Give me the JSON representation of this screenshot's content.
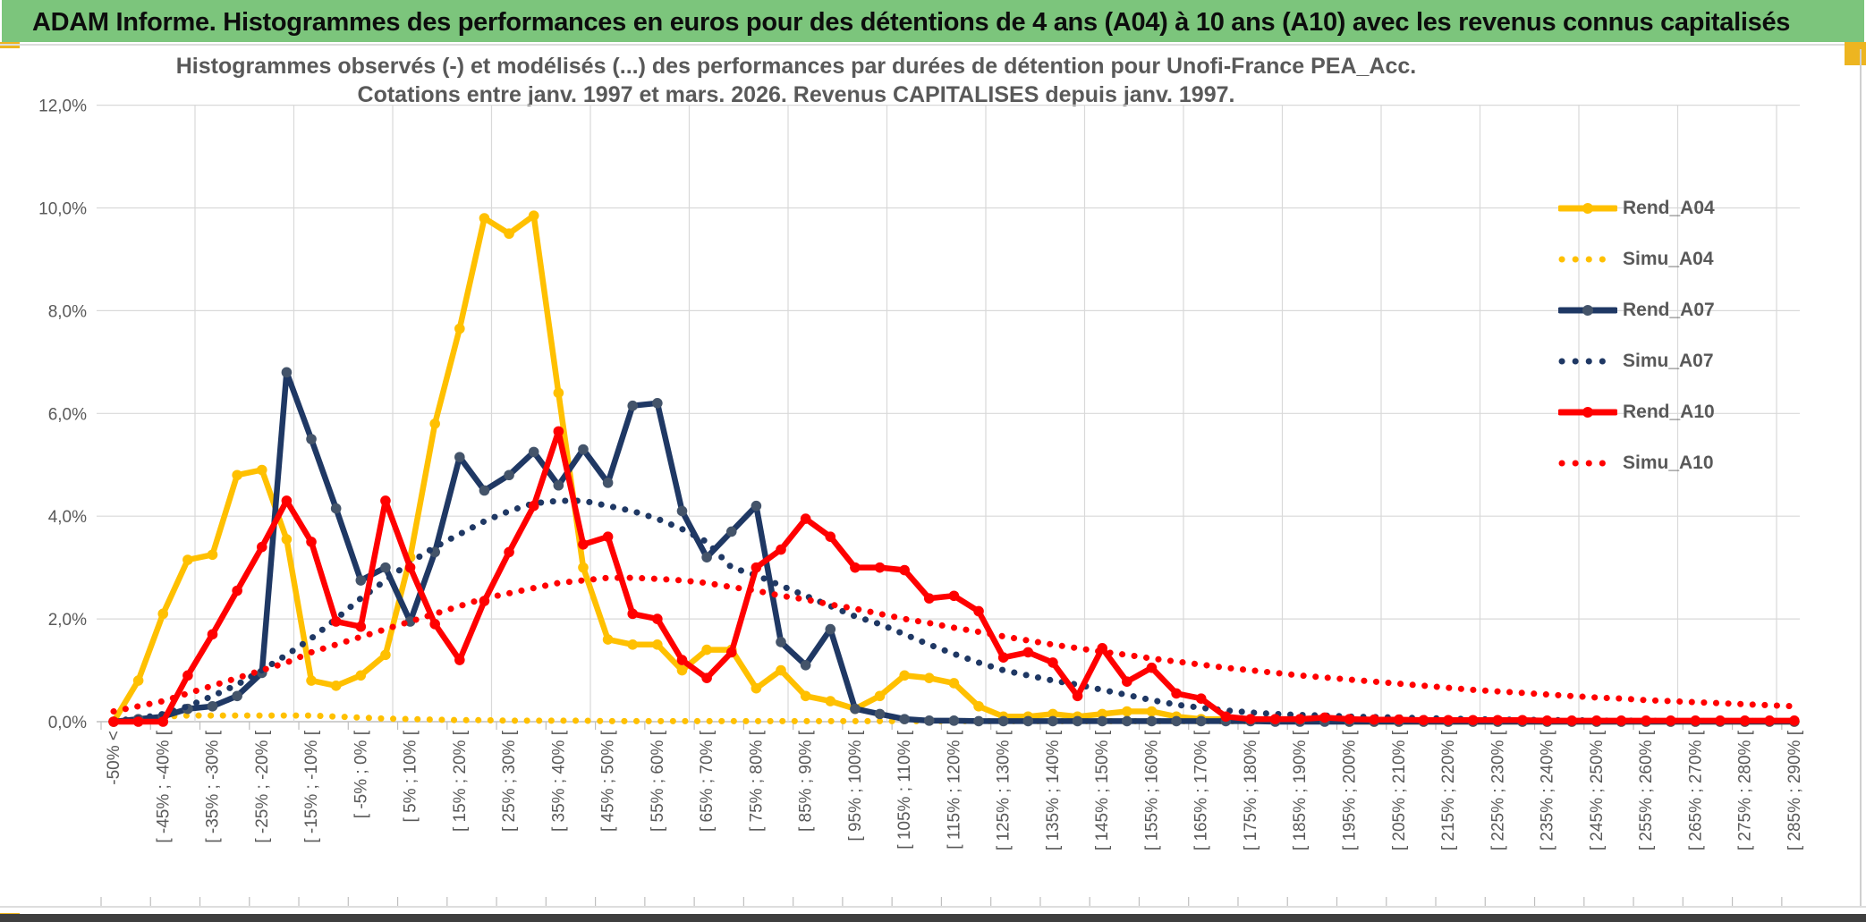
{
  "window": {
    "title": "ADAM Informe. Histogrammes des performances en euros pour des détentions de 4 ans (A04) à 10 ans (A10) avec les revenus connus capitalisés",
    "title_bar_color": "#7CC57C",
    "accent_gold": "#EDB520",
    "bottom_bar_color": "#3F3F3F"
  },
  "chart_data": {
    "type": "line",
    "title_line1": "Histogrammes observés (-) et modélisés (...) des performances par durées de détention pour Unofi-France PEA_Acc.",
    "title_line2": "Cotations entre janv. 1997 et mars. 2026. Revenus CAPITALISES depuis janv. 1997.",
    "grid": true,
    "gridline_color": "#D9D9D9",
    "axis_text_color": "#595959",
    "ylim": [
      0,
      12
    ],
    "y_tick_labels": [
      "0,0%",
      "2,0%",
      "4,0%",
      "6,0%",
      "8,0%",
      "10,0%",
      "12,0%"
    ],
    "x_tick_labels": [
      "-50% <",
      "[ -45% ; -40% [",
      "[ -35% ; -30% [",
      "[ -25% ; -20% [",
      "[ -15% ; -10% [",
      "[ -5% ; 0% [",
      "[ 5% ; 10% [",
      "[ 15% ; 20% [",
      "[ 25% ; 30% [",
      "[ 35% ; 40% [",
      "[ 45% ; 50% [",
      "[ 55% ; 60% [",
      "[ 65% ; 70% [",
      "[ 75% ; 80% [",
      "[ 85% ; 90% [",
      "[ 95% ; 100% [",
      "[ 105% ; 110% [",
      "[ 115% ; 120% [",
      "[ 125% ; 130% [",
      "[ 135% ; 140% [",
      "[ 145% ; 150% [",
      "[ 155% ; 160% [",
      "[ 165% ; 170% [",
      "[ 175% ; 180% [",
      "[ 185% ; 190% [",
      "[ 195% ; 200% [",
      "[ 205% ; 210% [",
      "[ 215% ; 220% [",
      "[ 225% ; 230% [",
      "[ 235% ; 240% [",
      "[ 245% ; 250% [",
      "[ 255% ; 260% [",
      "[ 265% ; 270% [",
      "[ 275% ; 280% [",
      "[ 285% ; 290% ["
    ],
    "bins_per_label": 2,
    "legend_position": "right-inside",
    "series": [
      {
        "name": "Rend_A04",
        "style": "solid",
        "color": "#FFC000",
        "marker_color": "#FFC000",
        "values": [
          0,
          0.8,
          2.1,
          3.15,
          3.25,
          4.8,
          4.9,
          3.55,
          0.8,
          0.7,
          0.9,
          1.3,
          3.2,
          5.8,
          7.65,
          9.8,
          9.5,
          9.85,
          6.4,
          3.0,
          1.6,
          1.5,
          1.5,
          1.0,
          1.4,
          1.4,
          0.65,
          1.0,
          0.5,
          0.4,
          0.25,
          0.5,
          0.9,
          0.85,
          0.75,
          0.3,
          0.1,
          0.1,
          0.15,
          0.1,
          0.15,
          0.2,
          0.2,
          0.1,
          0.05,
          0.05,
          0.03,
          0.02,
          0.02,
          0.02,
          0,
          0,
          0,
          0,
          0,
          0,
          0,
          0,
          0,
          0,
          0,
          0,
          0,
          0,
          0,
          0,
          0,
          0,
          0
        ]
      },
      {
        "name": "Simu_A04",
        "style": "dotted",
        "color": "#FFC000",
        "values": [
          0.02,
          0.06,
          0.1,
          0.12,
          0.12,
          0.12,
          0.12,
          0.12,
          0.12,
          0.1,
          0.08,
          0.06,
          0.05,
          0.04,
          0.03,
          0.03,
          0.02,
          0.02,
          0.02,
          0.02,
          0.01,
          0.01,
          0.01,
          0.01,
          0.01,
          0.01,
          0.01,
          0.01,
          0.01,
          0.01,
          0.01,
          0.01,
          0.01,
          0.01,
          0.01,
          0.01,
          0.01,
          0.01,
          0.01,
          0.01,
          0.01,
          0.01,
          0.01,
          0.01,
          0.01,
          0.01,
          0.01,
          0.01,
          0.01,
          0.01,
          0.01,
          0.01,
          0.01,
          0.01,
          0.01,
          0.01,
          0.01,
          0.01,
          0.01,
          0.01,
          0.01,
          0.01,
          0.01,
          0.01,
          0.01,
          0.01,
          0.01,
          0.01,
          0.01
        ]
      },
      {
        "name": "Rend_A07",
        "style": "solid",
        "color": "#1F3864",
        "marker_color": "#44546A",
        "values": [
          0,
          0.05,
          0.1,
          0.25,
          0.3,
          0.5,
          0.95,
          6.8,
          5.5,
          4.15,
          2.75,
          3.0,
          1.95,
          3.3,
          5.15,
          4.5,
          4.8,
          5.25,
          4.6,
          5.3,
          4.65,
          6.15,
          6.2,
          4.1,
          3.2,
          3.7,
          4.2,
          1.55,
          1.1,
          1.8,
          0.25,
          0.15,
          0.05,
          0.02,
          0.02,
          0.01,
          0.01,
          0.01,
          0.01,
          0.01,
          0.01,
          0.01,
          0.01,
          0.01,
          0.01,
          0.01,
          0.01,
          0,
          0,
          0,
          0,
          0,
          0,
          0,
          0,
          0,
          0,
          0,
          0,
          0,
          0,
          0,
          0,
          0,
          0,
          0,
          0,
          0,
          0
        ]
      },
      {
        "name": "Simu_A07",
        "style": "dotted",
        "color": "#1F3864",
        "values": [
          0.02,
          0.06,
          0.15,
          0.3,
          0.5,
          0.72,
          1.0,
          1.3,
          1.62,
          2.0,
          2.4,
          2.75,
          3.1,
          3.4,
          3.65,
          3.9,
          4.1,
          4.25,
          4.3,
          4.3,
          4.2,
          4.1,
          3.95,
          3.75,
          3.5,
          3.0,
          2.85,
          2.65,
          2.45,
          2.25,
          2.05,
          1.9,
          1.7,
          1.5,
          1.32,
          1.15,
          1.0,
          0.9,
          0.8,
          0.72,
          0.62,
          0.52,
          0.42,
          0.33,
          0.27,
          0.22,
          0.18,
          0.15,
          0.13,
          0.12,
          0.1,
          0.09,
          0.08,
          0.07,
          0.06,
          0.05,
          0.04,
          0.04,
          0.03,
          0.03,
          0.02,
          0.02,
          0.02,
          0.01,
          0.01,
          0.01,
          0.01,
          0.01,
          0.01
        ]
      },
      {
        "name": "Rend_A10",
        "style": "solid",
        "color": "#FF0000",
        "marker_color": "#FF0000",
        "values": [
          0,
          0,
          0,
          0.9,
          1.7,
          2.55,
          3.4,
          4.3,
          3.5,
          1.95,
          1.85,
          4.3,
          3.0,
          1.9,
          1.2,
          2.35,
          3.3,
          4.2,
          5.65,
          3.45,
          3.6,
          2.1,
          2.0,
          1.2,
          0.85,
          1.35,
          3.0,
          3.35,
          3.95,
          3.6,
          3.0,
          3.0,
          2.95,
          2.4,
          2.45,
          2.15,
          1.25,
          1.35,
          1.15,
          0.5,
          1.43,
          0.78,
          1.05,
          0.55,
          0.45,
          0.1,
          0.05,
          0.05,
          0.05,
          0.08,
          0.05,
          0.04,
          0.04,
          0.03,
          0.03,
          0.03,
          0.03,
          0.03,
          0.02,
          0.02,
          0.02,
          0.02,
          0.02,
          0.02,
          0.02,
          0.02,
          0.02,
          0.02,
          0.02
        ]
      },
      {
        "name": "Simu_A10",
        "style": "dotted",
        "color": "#FF0000",
        "values": [
          0.2,
          0.3,
          0.4,
          0.55,
          0.7,
          0.85,
          1.0,
          1.15,
          1.35,
          1.5,
          1.65,
          1.8,
          1.95,
          2.1,
          2.25,
          2.4,
          2.5,
          2.6,
          2.7,
          2.75,
          2.8,
          2.8,
          2.78,
          2.75,
          2.7,
          2.62,
          2.55,
          2.45,
          2.38,
          2.28,
          2.2,
          2.1,
          2.0,
          1.92,
          1.83,
          1.75,
          1.66,
          1.58,
          1.5,
          1.43,
          1.36,
          1.3,
          1.23,
          1.17,
          1.11,
          1.05,
          1.0,
          0.95,
          0.9,
          0.86,
          0.82,
          0.78,
          0.74,
          0.7,
          0.66,
          0.62,
          0.59,
          0.56,
          0.53,
          0.5,
          0.47,
          0.45,
          0.42,
          0.4,
          0.38,
          0.36,
          0.34,
          0.32,
          0.3
        ]
      }
    ]
  },
  "legend": {
    "entries": [
      {
        "label": "Rend_A04"
      },
      {
        "label": "Simu_A04"
      },
      {
        "label": "Rend_A07"
      },
      {
        "label": "Simu_A07"
      },
      {
        "label": "Rend_A10"
      },
      {
        "label": "Simu_A10"
      }
    ]
  }
}
